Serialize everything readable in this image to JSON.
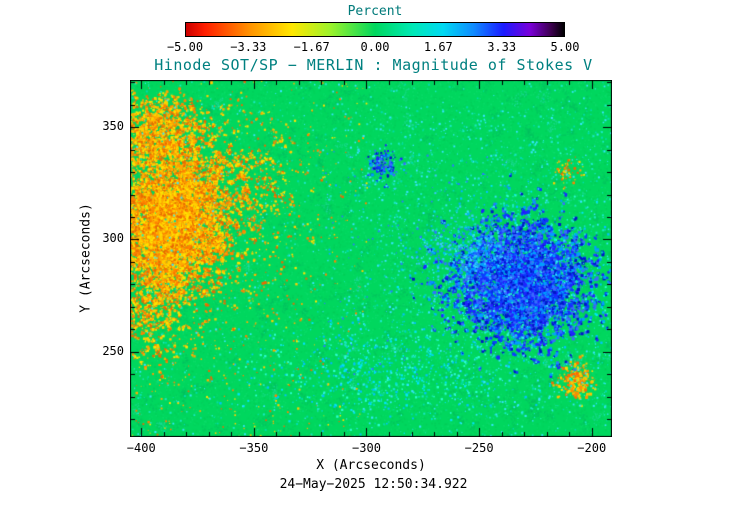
{
  "title": "Hinode SOT/SP − MERLIN : Magnitude of Stokes V",
  "timestamp": "24−May−2025 12:50:34.922",
  "colorbar": {
    "label": "Percent",
    "tick_labels": [
      "−5.00",
      "−3.33",
      "−1.67",
      "0.00",
      "1.67",
      "3.33",
      "5.00"
    ],
    "stops": [
      [
        "#cc0000",
        0
      ],
      [
        "#ff1e00",
        0.05
      ],
      [
        "#ff9300",
        0.17
      ],
      [
        "#ffe700",
        0.28
      ],
      [
        "#9ef32a",
        0.38
      ],
      [
        "#00d75e",
        0.5
      ],
      [
        "#00e9b6",
        0.6
      ],
      [
        "#00d9f2",
        0.68
      ],
      [
        "#0f8cff",
        0.76
      ],
      [
        "#1b1bff",
        0.84
      ],
      [
        "#7a00d8",
        0.91
      ],
      [
        "#3d0050",
        0.965
      ],
      [
        "#000000",
        1
      ]
    ]
  },
  "chart_data": {
    "type": "heatmap",
    "title": "Hinode SOT/SP − MERLIN : Magnitude of Stokes V",
    "xlabel": "X (Arcseconds)",
    "ylabel": "Y (Arcseconds)",
    "units": "Percent",
    "value_range": [
      -5,
      5
    ],
    "x_range": [
      -405,
      -191
    ],
    "y_range": [
      212,
      371
    ],
    "x_ticks": [
      -400,
      -350,
      -300,
      -250,
      -200
    ],
    "x_tick_labels": [
      "−400",
      "−350",
      "−300",
      "−250",
      "−200"
    ],
    "y_ticks": [
      250,
      300,
      350
    ],
    "y_tick_labels": [
      "250",
      "300",
      "350"
    ],
    "background_value": 0,
    "colors": {
      "base": "#00d75e",
      "texture": [
        "#00cf58",
        "#0ae06e",
        "#00c352",
        "#16e077"
      ],
      "filament": "#00bd62",
      "palettes": {
        "pos": [
          "#ffe400",
          "#ffd000",
          "#ffab00",
          "#ff8300",
          "#e86a00"
        ],
        "pos-strong": [
          "#ff9000",
          "#ff6a00",
          "#ffc400",
          "#ffdd00"
        ],
        "neg": [
          "#2222ff",
          "#0b3cff",
          "#0016c8",
          "#3a6bff",
          "#00a0ff"
        ],
        "neg-light": [
          "#00b4ff",
          "#39c8ff",
          "#2a79ff"
        ],
        "cyan": [
          "#00e4ff",
          "#2affd2",
          "#00c3ff"
        ],
        "cyan-weak": [
          "#19e8c4",
          "#00dcad",
          "#35e5ff"
        ]
      }
    },
    "features": [
      {
        "type": "cluster",
        "sign": "positive",
        "x": -387,
        "y": 307,
        "sx": 12,
        "sy": 14,
        "n": 2400,
        "palette": "pos",
        "walk": true,
        "dot": 2.2
      },
      {
        "type": "cluster",
        "sign": "positive",
        "x": -392,
        "y": 346,
        "sx": 10,
        "sy": 9,
        "n": 650,
        "palette": "pos",
        "walk": true,
        "dot": 1.8
      },
      {
        "type": "cluster",
        "sign": "positive",
        "x": -369,
        "y": 327,
        "sx": 19,
        "sy": 13,
        "n": 500,
        "palette": "pos",
        "walk": true,
        "dot": 1.6
      },
      {
        "type": "cluster",
        "sign": "positive",
        "x": -377,
        "y": 299,
        "sx": 28,
        "sy": 34,
        "n": 800,
        "palette": "pos",
        "walk": false,
        "dot": 1.5
      },
      {
        "type": "cluster",
        "sign": "positive",
        "x": -396,
        "y": 272,
        "sx": 9,
        "sy": 13,
        "n": 320,
        "palette": "pos",
        "walk": true,
        "dot": 1.8
      },
      {
        "type": "cluster",
        "sign": "positive",
        "x": -207,
        "y": 237,
        "sx": 4,
        "sy": 4,
        "n": 230,
        "palette": "pos-strong",
        "walk": false,
        "dot": 2.2
      },
      {
        "type": "cluster",
        "sign": "positive",
        "x": -211,
        "y": 330,
        "sx": 3,
        "sy": 3,
        "n": 60,
        "palette": "pos",
        "walk": false,
        "dot": 1.6
      },
      {
        "type": "cluster",
        "sign": "negative",
        "x": -231,
        "y": 281,
        "sx": 20,
        "sy": 18,
        "n": 800,
        "palette": "cyan",
        "walk": false,
        "dot": 1.4
      },
      {
        "type": "cluster",
        "sign": "negative",
        "x": -231,
        "y": 281,
        "sx": 14,
        "sy": 13,
        "n": 2600,
        "palette": "neg",
        "walk": true,
        "dot": 2.2
      },
      {
        "type": "cluster",
        "sign": "negative",
        "x": -255,
        "y": 296,
        "sx": 12,
        "sy": 7,
        "n": 450,
        "palette": "neg-light",
        "walk": false,
        "dot": 1.5
      },
      {
        "type": "cluster",
        "sign": "negative",
        "x": -293,
        "y": 333,
        "sx": 3,
        "sy": 3.5,
        "n": 140,
        "palette": "neg",
        "walk": false,
        "dot": 1.8
      },
      {
        "type": "cluster",
        "sign": "negative",
        "x": -294,
        "y": 241,
        "sx": 30,
        "sy": 11,
        "n": 600,
        "palette": "cyan",
        "walk": false,
        "dot": 1.4
      },
      {
        "type": "speckle",
        "sign": "negative",
        "x_range": [
          -405,
          -191
        ],
        "y_range": [
          212,
          371
        ],
        "n": 1500,
        "palette": "cyan-weak",
        "dot": 1.3
      },
      {
        "type": "speckle",
        "sign": "negative",
        "x_range": [
          -310,
          -191
        ],
        "y_range": [
          220,
          360
        ],
        "n": 1300,
        "palette": "cyan-weak",
        "dot": 1.4
      },
      {
        "type": "speckle",
        "sign": "positive",
        "x_range": [
          -405,
          -300
        ],
        "y_range": [
          212,
          371
        ],
        "n": 450,
        "palette": "pos",
        "dot": 1.2
      },
      {
        "type": "speckle",
        "sign": "negative",
        "x_range": [
          -320,
          -235
        ],
        "y_range": [
          240,
          340
        ],
        "n": 220,
        "palette": "neg-light",
        "dot": 1.3
      }
    ]
  }
}
